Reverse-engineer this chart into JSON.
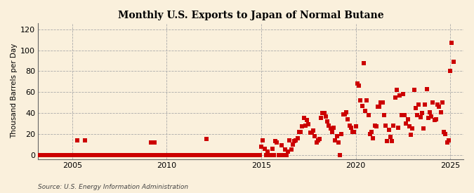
{
  "title": "Monthly U.S. Exports to Japan of Normal Butane",
  "ylabel": "Thousand Barrels per Day",
  "source": "Source: U.S. Energy Information Administration",
  "bg_color": "#FAF0DC",
  "plot_bg_color": "#FAF0DC",
  "marker_color": "#CC0000",
  "marker_size": 14,
  "ylim": [
    -4,
    126
  ],
  "yticks": [
    0,
    20,
    40,
    60,
    80,
    100,
    120
  ],
  "xlim": [
    2003.2,
    2025.7
  ],
  "xticks": [
    2005,
    2010,
    2015,
    2020,
    2025
  ],
  "data_x": [
    2003.0,
    2003.083,
    2003.167,
    2003.25,
    2003.333,
    2003.417,
    2003.5,
    2003.583,
    2003.667,
    2003.75,
    2003.833,
    2003.917,
    2004.0,
    2004.083,
    2004.167,
    2004.25,
    2004.333,
    2004.417,
    2004.5,
    2004.583,
    2004.667,
    2004.75,
    2004.833,
    2004.917,
    2005.0,
    2005.083,
    2005.167,
    2005.25,
    2005.333,
    2005.417,
    2005.5,
    2005.583,
    2005.667,
    2005.75,
    2005.833,
    2005.917,
    2006.0,
    2006.083,
    2006.167,
    2006.25,
    2006.333,
    2006.417,
    2006.5,
    2006.583,
    2006.667,
    2006.75,
    2006.833,
    2006.917,
    2007.0,
    2007.083,
    2007.167,
    2007.25,
    2007.333,
    2007.417,
    2007.5,
    2007.583,
    2007.667,
    2007.75,
    2007.833,
    2007.917,
    2008.0,
    2008.083,
    2008.167,
    2008.25,
    2008.333,
    2008.417,
    2008.5,
    2008.583,
    2008.667,
    2008.75,
    2008.833,
    2008.917,
    2009.0,
    2009.083,
    2009.167,
    2009.25,
    2009.333,
    2009.417,
    2009.5,
    2009.583,
    2009.667,
    2009.75,
    2009.833,
    2009.917,
    2010.0,
    2010.083,
    2010.167,
    2010.25,
    2010.333,
    2010.417,
    2010.5,
    2010.583,
    2010.667,
    2010.75,
    2010.833,
    2010.917,
    2011.0,
    2011.083,
    2011.167,
    2011.25,
    2011.333,
    2011.417,
    2011.5,
    2011.583,
    2011.667,
    2011.75,
    2011.833,
    2011.917,
    2012.0,
    2012.083,
    2012.167,
    2012.25,
    2012.333,
    2012.417,
    2012.5,
    2012.583,
    2012.667,
    2012.75,
    2012.833,
    2012.917,
    2013.0,
    2013.083,
    2013.167,
    2013.25,
    2013.333,
    2013.417,
    2013.5,
    2013.583,
    2013.667,
    2013.75,
    2013.833,
    2013.917,
    2014.0,
    2014.083,
    2014.167,
    2014.25,
    2014.333,
    2014.417,
    2014.5,
    2014.583,
    2014.667,
    2014.75,
    2014.833,
    2014.917,
    2015.0,
    2015.083,
    2015.167,
    2015.25,
    2015.333,
    2015.417,
    2015.5,
    2015.583,
    2015.667,
    2015.75,
    2015.833,
    2015.917,
    2016.0,
    2016.083,
    2016.167,
    2016.25,
    2016.333,
    2016.417,
    2016.5,
    2016.583,
    2016.667,
    2016.75,
    2016.833,
    2016.917,
    2017.0,
    2017.083,
    2017.167,
    2017.25,
    2017.333,
    2017.417,
    2017.5,
    2017.583,
    2017.667,
    2017.75,
    2017.833,
    2017.917,
    2018.0,
    2018.083,
    2018.167,
    2018.25,
    2018.333,
    2018.417,
    2018.5,
    2018.583,
    2018.667,
    2018.75,
    2018.833,
    2018.917,
    2019.0,
    2019.083,
    2019.167,
    2019.25,
    2019.333,
    2019.417,
    2019.5,
    2019.583,
    2019.667,
    2019.75,
    2019.833,
    2019.917,
    2020.0,
    2020.083,
    2020.167,
    2020.25,
    2020.333,
    2020.417,
    2020.5,
    2020.583,
    2020.667,
    2020.75,
    2020.833,
    2020.917,
    2021.0,
    2021.083,
    2021.167,
    2021.25,
    2021.333,
    2021.417,
    2021.5,
    2021.583,
    2021.667,
    2021.75,
    2021.833,
    2021.917,
    2022.0,
    2022.083,
    2022.167,
    2022.25,
    2022.333,
    2022.417,
    2022.5,
    2022.583,
    2022.667,
    2022.75,
    2022.833,
    2022.917,
    2023.0,
    2023.083,
    2023.167,
    2023.25,
    2023.333,
    2023.417,
    2023.5,
    2023.583,
    2023.667,
    2023.75,
    2023.833,
    2023.917,
    2024.0,
    2024.083,
    2024.167,
    2024.25,
    2024.333,
    2024.417,
    2024.5,
    2024.583,
    2024.667,
    2024.75,
    2024.833,
    2024.917,
    2025.0,
    2025.083,
    2025.167
  ],
  "data_y": [
    0,
    0,
    0,
    0,
    0,
    0,
    0,
    0,
    0,
    0,
    0,
    0,
    0,
    0,
    0,
    0,
    0,
    0,
    0,
    0,
    0,
    0,
    0,
    0,
    0,
    0,
    0,
    14,
    0,
    0,
    0,
    0,
    14,
    0,
    0,
    0,
    0,
    0,
    0,
    0,
    0,
    0,
    0,
    0,
    0,
    0,
    0,
    0,
    0,
    0,
    0,
    0,
    0,
    0,
    0,
    0,
    0,
    0,
    0,
    0,
    0,
    0,
    0,
    0,
    0,
    0,
    0,
    0,
    0,
    0,
    0,
    0,
    0,
    0,
    12,
    0,
    12,
    0,
    0,
    0,
    0,
    0,
    0,
    0,
    0,
    0,
    0,
    0,
    0,
    0,
    0,
    0,
    0,
    0,
    0,
    0,
    0,
    0,
    0,
    0,
    0,
    0,
    0,
    0,
    0,
    0,
    0,
    0,
    0,
    15,
    0,
    0,
    0,
    0,
    0,
    0,
    0,
    0,
    0,
    0,
    0,
    0,
    0,
    0,
    0,
    0,
    0,
    0,
    0,
    0,
    0,
    0,
    0,
    0,
    0,
    0,
    0,
    0,
    0,
    0,
    0,
    0,
    0,
    0,
    8,
    14,
    6,
    0,
    3,
    0,
    0,
    6,
    0,
    13,
    12,
    0,
    0,
    9,
    0,
    5,
    0,
    3,
    14,
    5,
    10,
    13,
    14,
    16,
    22,
    22,
    27,
    35,
    28,
    33,
    29,
    21,
    21,
    23,
    18,
    12,
    14,
    15,
    35,
    40,
    40,
    37,
    32,
    28,
    25,
    22,
    26,
    14,
    18,
    12,
    0,
    20,
    39,
    39,
    41,
    34,
    28,
    26,
    22,
    22,
    27,
    68,
    66,
    52,
    47,
    88,
    42,
    52,
    38,
    20,
    22,
    16,
    28,
    27,
    46,
    46,
    50,
    50,
    38,
    28,
    13,
    24,
    17,
    13,
    28,
    55,
    62,
    26,
    57,
    38,
    58,
    38,
    30,
    34,
    27,
    19,
    25,
    62,
    45,
    38,
    48,
    36,
    40,
    25,
    48,
    63,
    35,
    41,
    37,
    50,
    33,
    34,
    48,
    46,
    41,
    50,
    22,
    20,
    12,
    14,
    80,
    107,
    89
  ]
}
